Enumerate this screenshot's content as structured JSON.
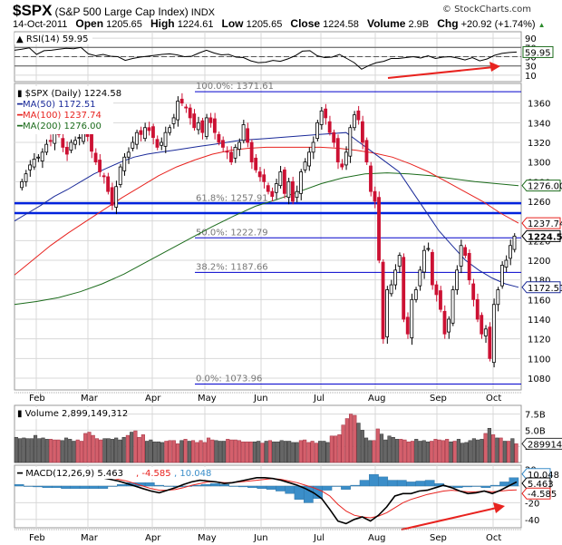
{
  "header": {
    "symbol": "$SPX",
    "name": "(S&P 500 Large Cap Index)",
    "exchange": "INDX",
    "brand": "© StockCharts.com",
    "date": "14-Oct-2011",
    "open_label": "Open",
    "open": "1205.65",
    "high_label": "High",
    "high": "1224.61",
    "low_label": "Low",
    "low": "1205.65",
    "close_label": "Close",
    "close": "1224.58",
    "volume_label": "Volume",
    "volume": "2.9B",
    "chg_label": "Chg",
    "chg": "+20.92 (+1.74%)",
    "chg_icon": "up-triangle-icon"
  },
  "colors": {
    "up": "#000000",
    "down": "#cc1133",
    "ma50": "#1a2a99",
    "ma100": "#e8231f",
    "ma200": "#1b6b1b",
    "fib": "#0000cc",
    "support": "#0022dd",
    "grid": "#d8d8d8",
    "vol_up": "#666666",
    "vol_down": "#d4606c",
    "macd": "#000000",
    "signal": "#e8231f",
    "hist": "#3b8ec9",
    "arrow": "#e8231f"
  },
  "chart_data": [
    {
      "type": "line",
      "title": "RSI(14) 59.95",
      "legend": [
        "RSI(14) 59.95"
      ],
      "yticks": [
        10,
        30,
        50,
        70,
        90
      ],
      "ylim": [
        0,
        100
      ],
      "reference_lines": [
        30,
        50,
        70
      ],
      "last_value": "59.95",
      "series": [
        {
          "name": "RSI(14)",
          "values": [
            64,
            66,
            69,
            55,
            63,
            64,
            66,
            68,
            67,
            70,
            56,
            52,
            55,
            51,
            50,
            42,
            46,
            49,
            51,
            53,
            55,
            56,
            54,
            50,
            51,
            58,
            64,
            58,
            54,
            55,
            49,
            48,
            41,
            37,
            38,
            42,
            40,
            45,
            52,
            62,
            63,
            52,
            48,
            49,
            55,
            46,
            37,
            23,
            31,
            37,
            40,
            46,
            46,
            48,
            50,
            47,
            52,
            46,
            49,
            50,
            47,
            43,
            48,
            41,
            45,
            53,
            57,
            59,
            60
          ]
        }
      ],
      "annotations": [
        "red arrow from (Aug) to (Oct) pointing up-right below RSI"
      ]
    },
    {
      "type": "candlestick",
      "title": "$SPX (Daily) 1224.58",
      "legend": [
        "$SPX (Daily) 1224.58",
        "MA(50) 1172.51",
        "MA(100) 1237.74",
        "MA(200) 1276.00"
      ],
      "xlabels": [
        "Feb",
        "Mar",
        "Apr",
        "May",
        "Jun",
        "Jul",
        "Aug",
        "Sep",
        "Oct"
      ],
      "yticks": [
        1080,
        1100,
        1120,
        1140,
        1160,
        1180,
        1200,
        1220,
        1240,
        1260,
        1280,
        1300,
        1320,
        1340,
        1360
      ],
      "ylim": [
        1068,
        1380
      ],
      "fibonacci": [
        {
          "label": "100.0%: 1371.61",
          "value": 1371.61
        },
        {
          "label": "61.8%: 1257.91",
          "value": 1257.91
        },
        {
          "label": "50.0%: 1222.79",
          "value": 1222.79
        },
        {
          "label": "38.2%: 1187.66",
          "value": 1187.66
        },
        {
          "label": "0.0%: 1073.96",
          "value": 1073.96
        }
      ],
      "support_lines": [
        1258,
        1248
      ],
      "right_tags": [
        {
          "value": "1276.00",
          "y": 1276,
          "color": "#1b6b1b"
        },
        {
          "value": "1237.74",
          "y": 1237.74,
          "color": "#e8231f"
        },
        {
          "value": "1224.58",
          "y": 1224.58,
          "color": "#000000"
        },
        {
          "value": "1172.51",
          "y": 1172.51,
          "color": "#1a2a99"
        }
      ],
      "close": [
        1280,
        1288,
        1297,
        1303,
        1305,
        1310,
        1318,
        1321,
        1330,
        1328,
        1315,
        1308,
        1320,
        1322,
        1325,
        1330,
        1326,
        1311,
        1300,
        1290,
        1285,
        1270,
        1256,
        1275,
        1295,
        1305,
        1310,
        1320,
        1330,
        1328,
        1335,
        1332,
        1325,
        1315,
        1320,
        1330,
        1335,
        1345,
        1362,
        1360,
        1355,
        1345,
        1335,
        1340,
        1330,
        1345,
        1340,
        1330,
        1320,
        1315,
        1310,
        1300,
        1315,
        1320,
        1338,
        1320,
        1300,
        1292,
        1285,
        1280,
        1270,
        1265,
        1278,
        1290,
        1268,
        1280,
        1260,
        1270,
        1290,
        1300,
        1310,
        1320,
        1340,
        1352,
        1345,
        1330,
        1320,
        1300,
        1295,
        1310,
        1335,
        1348,
        1343,
        1320,
        1300,
        1270,
        1260,
        1200,
        1120,
        1170,
        1175,
        1190,
        1205,
        1140,
        1125,
        1160,
        1170,
        1190,
        1210,
        1212,
        1175,
        1165,
        1150,
        1125,
        1140,
        1170,
        1190,
        1215,
        1205,
        1180,
        1160,
        1140,
        1125,
        1130,
        1100,
        1155,
        1170,
        1195,
        1200,
        1215,
        1224.58
      ],
      "ma50": [
        1240,
        1248,
        1256,
        1265,
        1272,
        1280,
        1288,
        1294,
        1300,
        1305,
        1308,
        1310,
        1312,
        1314,
        1316,
        1318,
        1320,
        1322,
        1323,
        1324,
        1325,
        1326,
        1327,
        1328,
        1329,
        1330,
        1320,
        1310,
        1300,
        1290,
        1270,
        1250,
        1230,
        1215,
        1200,
        1190,
        1182,
        1176,
        1172.51
      ],
      "ma100": [
        1185,
        1200,
        1215,
        1228,
        1240,
        1252,
        1264,
        1275,
        1286,
        1295,
        1302,
        1308,
        1312,
        1314,
        1315,
        1315,
        1315,
        1315,
        1314,
        1312,
        1309,
        1305,
        1298,
        1290,
        1280,
        1270,
        1260,
        1248,
        1237.74
      ],
      "ma200": [
        1155,
        1158,
        1162,
        1168,
        1176,
        1186,
        1198,
        1210,
        1222,
        1234,
        1245,
        1255,
        1262,
        1270,
        1278,
        1284,
        1288,
        1289,
        1288,
        1286,
        1283,
        1280,
        1278,
        1276
      ]
    },
    {
      "type": "bar",
      "title": "Volume 2,899,149,312",
      "legend": [
        "Volume 2,899,149,312"
      ],
      "yticks": [
        "2.5B",
        "5.0B",
        "7.5B"
      ],
      "last_value": "2899149",
      "unit": "billions",
      "values": [
        3.9,
        3.7,
        3.8,
        3.7,
        3.7,
        4.2,
        3.7,
        3.8,
        3.6,
        3.6,
        3.5,
        3.5,
        3.4,
        3.8,
        3.6,
        3.3,
        3.5,
        3.3,
        4.5,
        4.7,
        4.2,
        3.7,
        3.5,
        3.7,
        3.7,
        3.6,
        3.8,
        3.5,
        3.9,
        4.2,
        4.7,
        4.9,
        3.9,
        4.3,
        3.3,
        3.5,
        3.2,
        3.2,
        3.1,
        3.3,
        3.4,
        3.4,
        2.9,
        3.4,
        3.6,
        3.3,
        3.4,
        3.1,
        3.4,
        3.1,
        3.8,
        3.5,
        3.4,
        3.3,
        3.3,
        3.6,
        3.5,
        3.5,
        3.4,
        3.2,
        3.2,
        3.2,
        3.2,
        3.3,
        3.0,
        3.3,
        3.4,
        3.2,
        3.2,
        3.4,
        3.3,
        3.3,
        3.1,
        3.1,
        3.4,
        3.5,
        3.1,
        3.3,
        3.0,
        3.3,
        3.3,
        3.1,
        4.1,
        4.1,
        4.3,
        5.8,
        6.8,
        7.5,
        7.3,
        6.1,
        5.0,
        3.8,
        3.4,
        3.4,
        5.2,
        4.4,
        3.5,
        4.1,
        3.9,
        3.6,
        3.6,
        3.5,
        3.2,
        3.3,
        3.6,
        3.3,
        3.4,
        3.2,
        3.3,
        3.6,
        3.5,
        3.4,
        3.6,
        3.2,
        3.3,
        3.6,
        3.0,
        3.1,
        3.4,
        3.7,
        3.5,
        3.6,
        4.5,
        5.3,
        4.3,
        3.8,
        3.8,
        3.3,
        3.3,
        3.7,
        2.9
      ],
      "colors_pattern": "red for down days, gray for up days"
    },
    {
      "type": "line",
      "title": "MACD(12,26,9) 5.463, -4.585, 10.048",
      "legend": [
        "MACD(12,26,9) 5.463",
        "-4.585",
        "10.048"
      ],
      "yticks": [
        -40,
        -20,
        0,
        20
      ],
      "ylim": [
        -50,
        25
      ],
      "right_tags": [
        "10.048",
        "5.463",
        "-4.585"
      ],
      "series": [
        {
          "name": "MACD",
          "values": [
            12,
            11,
            10,
            8,
            6,
            3,
            0,
            -3,
            -6,
            -8,
            -5,
            -2,
            2,
            5,
            7,
            6,
            5,
            3,
            4,
            6,
            8,
            10,
            10,
            9,
            7,
            4,
            1,
            -3,
            -8,
            -15,
            -28,
            -42,
            -45,
            -40,
            -37,
            -42,
            -35,
            -25,
            -12,
            -9,
            -9,
            -6,
            -5,
            -2,
            1,
            -2,
            -6,
            -9,
            -8,
            -6,
            -9,
            -5,
            0,
            5
          ]
        },
        {
          "name": "Signal",
          "values": [
            10,
            11,
            11,
            10,
            8,
            6,
            3,
            0,
            -3,
            -5,
            -5,
            -4,
            -2,
            1,
            3,
            5,
            5,
            4,
            4,
            5,
            6,
            7,
            8,
            9,
            8,
            6,
            4,
            1,
            -2,
            -6,
            -12,
            -22,
            -30,
            -35,
            -37,
            -38,
            -36,
            -32,
            -26,
            -20,
            -16,
            -13,
            -10,
            -8,
            -6,
            -5,
            -6,
            -7,
            -7,
            -6,
            -7,
            -6,
            -5,
            -4.585
          ]
        },
        {
          "name": "Histogram",
          "values": [
            2,
            0,
            -1,
            -2,
            -2,
            -3,
            -3,
            -3,
            -3,
            -3,
            0,
            2,
            4,
            4,
            4,
            1,
            0,
            -1,
            0,
            1,
            2,
            3,
            2,
            0,
            -1,
            -2,
            -3,
            -4,
            -6,
            -9,
            -16,
            -20,
            -15,
            -5,
            0,
            -4,
            1,
            7,
            14,
            11,
            7,
            7,
            5,
            6,
            7,
            3,
            0,
            -2,
            -1,
            0,
            -2,
            1,
            5,
            10
          ]
        }
      ],
      "annotations": [
        "red arrow from (Aug) to (Oct) pointing up-right in MACD panel"
      ]
    }
  ]
}
